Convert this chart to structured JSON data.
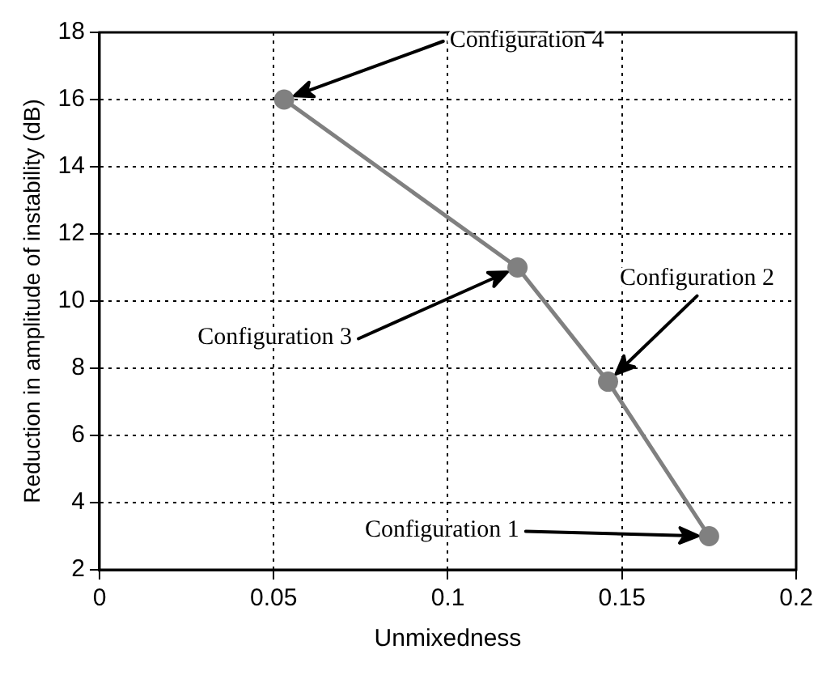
{
  "chart_data": {
    "type": "line",
    "xlabel": "Unmixedness",
    "ylabel": "Reduction in amplitude of instability (dB)",
    "x": [
      0.053,
      0.12,
      0.146,
      0.175
    ],
    "series": [
      {
        "color": "#808080",
        "values": [
          16,
          11,
          7.6,
          3
        ]
      }
    ],
    "xlim": [
      0,
      0.2
    ],
    "xticks": [
      0,
      0.05,
      0.1,
      0.15,
      0.2
    ],
    "ylim": [
      2,
      18
    ],
    "yticks": [
      2,
      4,
      6,
      8,
      10,
      12,
      14,
      16,
      18
    ],
    "grid": true,
    "legend": false,
    "marker": "circle",
    "line_style": "solid",
    "annotations": [
      "Configuration 4",
      "Configuration 3",
      "Configuration 2",
      "Configuration 1"
    ]
  }
}
